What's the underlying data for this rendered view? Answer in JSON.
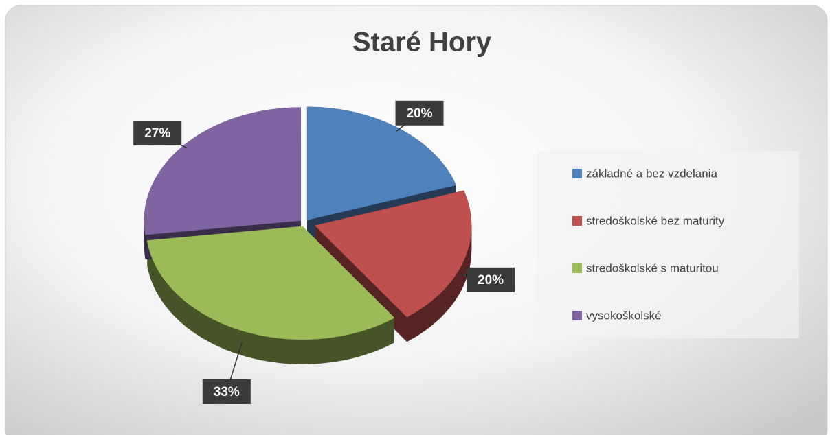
{
  "chart_data": {
    "type": "pie",
    "title": "Staré Hory",
    "categories": [
      "základné a bez vzdelania",
      "stredoškolské bez maturity",
      "stredoškolské s maturitou",
      "vysokoškolské"
    ],
    "values": [
      20,
      20,
      33,
      27
    ],
    "value_labels": [
      "20%",
      "20%",
      "33%",
      "27%"
    ],
    "colors": [
      "#4f81bd",
      "#c0504d",
      "#9bbb59",
      "#8064a2"
    ],
    "legend": "right"
  }
}
